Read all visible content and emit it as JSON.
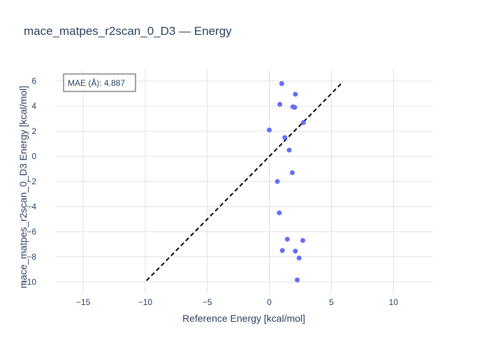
{
  "chart_data": {
    "type": "scatter",
    "title": "mace_matpes_r2scan_0_D3 — Energy",
    "xlabel": "Reference Energy [kcal/mol]",
    "ylabel": "mace_matpes_r2scan_0_D3 Energy [kcal/mol]",
    "xlim": [
      -17.2,
      13.2
    ],
    "ylim": [
      -10.9,
      6.9
    ],
    "xticks": [
      -15,
      -10,
      -5,
      0,
      5,
      10
    ],
    "yticks": [
      -10,
      -8,
      -6,
      -4,
      -2,
      0,
      2,
      4,
      6
    ],
    "xtick_labels": [
      "−15",
      "−10",
      "−5",
      "0",
      "5",
      "10"
    ],
    "ytick_labels": [
      "−10",
      "−8",
      "−6",
      "−4",
      "−2",
      "0",
      "2",
      "4",
      "6"
    ],
    "grid": true,
    "annotation": "MAE (Å): 4.887",
    "reference_line": {
      "x": [
        -9.9,
        5.8
      ],
      "y": [
        -9.9,
        5.8
      ],
      "style": "dashed",
      "color": "#000000"
    },
    "marker_color": "#636efa",
    "points": [
      {
        "x": 1.0,
        "y": 5.8
      },
      {
        "x": 2.1,
        "y": 4.95
      },
      {
        "x": 0.85,
        "y": 4.15
      },
      {
        "x": 1.9,
        "y": 3.95
      },
      {
        "x": 2.05,
        "y": 3.9
      },
      {
        "x": 2.75,
        "y": 2.7
      },
      {
        "x": 0.0,
        "y": 2.1
      },
      {
        "x": 1.25,
        "y": 1.5
      },
      {
        "x": 1.6,
        "y": 0.5
      },
      {
        "x": 1.85,
        "y": -1.3
      },
      {
        "x": 0.65,
        "y": -2.0
      },
      {
        "x": 0.8,
        "y": -4.5
      },
      {
        "x": 1.45,
        "y": -6.6
      },
      {
        "x": 2.7,
        "y": -6.7
      },
      {
        "x": 1.05,
        "y": -7.5
      },
      {
        "x": 2.1,
        "y": -7.55
      },
      {
        "x": 2.4,
        "y": -8.1
      },
      {
        "x": 2.25,
        "y": -9.85
      }
    ]
  }
}
